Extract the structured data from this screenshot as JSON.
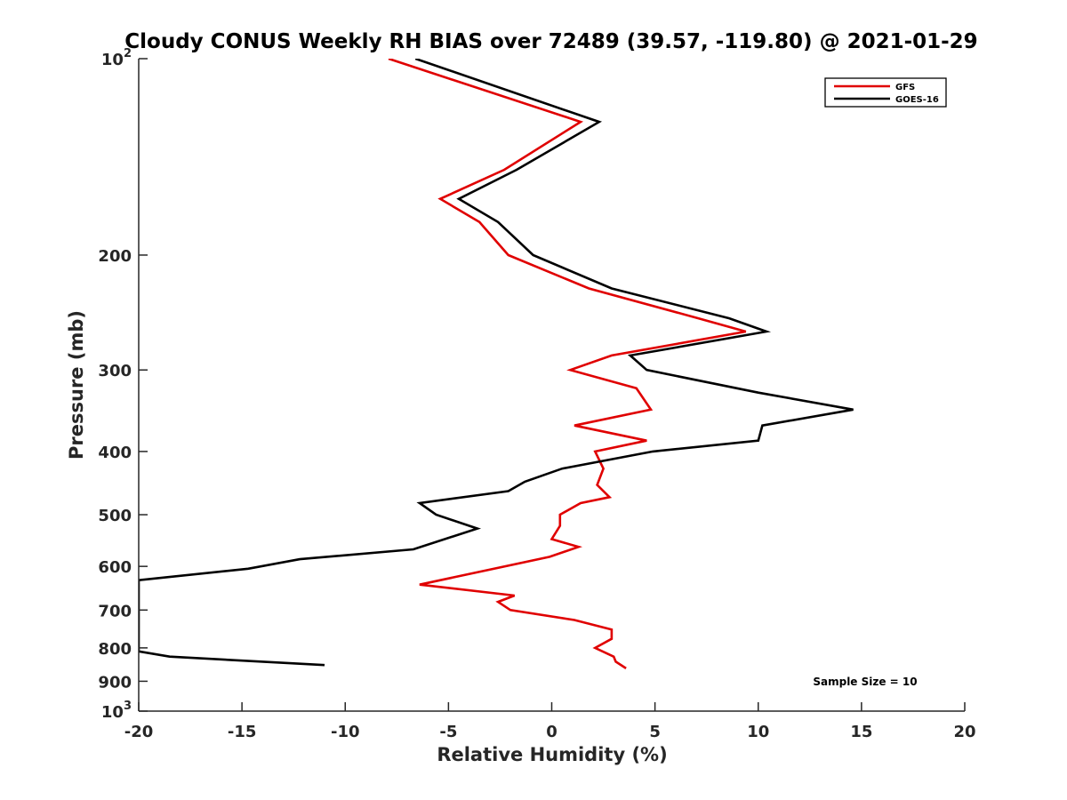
{
  "chart_data": {
    "type": "line",
    "title": "Cloudy CONUS Weekly RH BIAS over 72489 (39.57, -119.80) @ 2021-01-29",
    "xlabel": "Relative Humidity (%)",
    "ylabel": "Pressure (mb)",
    "xlim": [
      -20,
      20
    ],
    "ylim": [
      100,
      1000
    ],
    "yscale": "log",
    "y_reversed": true,
    "grid": false,
    "legend_position": "top-right",
    "x_ticks": [
      -20,
      -15,
      -10,
      -5,
      0,
      5,
      10,
      15,
      20
    ],
    "y_ticks": [
      {
        "value": 100,
        "base": "10",
        "exp": "2"
      },
      {
        "value": 200,
        "label": "200"
      },
      {
        "value": 300,
        "label": "300"
      },
      {
        "value": 400,
        "label": "400"
      },
      {
        "value": 500,
        "label": "500"
      },
      {
        "value": 600,
        "label": "600"
      },
      {
        "value": 700,
        "label": "700"
      },
      {
        "value": 800,
        "label": "800"
      },
      {
        "value": 900,
        "label": "900"
      },
      {
        "value": 1000,
        "base": "10",
        "exp": "3"
      }
    ],
    "annotation": "Sample Size = 10",
    "series": [
      {
        "name": "GFS",
        "color": "#e00000",
        "points": [
          [
            -7.9,
            100
          ],
          [
            1.4,
            125
          ],
          [
            -2.3,
            148
          ],
          [
            -5.4,
            164
          ],
          [
            -3.5,
            178
          ],
          [
            -2.1,
            200
          ],
          [
            1.8,
            225
          ],
          [
            7.1,
            250
          ],
          [
            9.4,
            262
          ],
          [
            2.9,
            285
          ],
          [
            0.9,
            300
          ],
          [
            4.1,
            320
          ],
          [
            4.8,
            345
          ],
          [
            1.1,
            365
          ],
          [
            4.6,
            385
          ],
          [
            2.1,
            400
          ],
          [
            2.5,
            425
          ],
          [
            2.2,
            450
          ],
          [
            2.8,
            470
          ],
          [
            1.4,
            480
          ],
          [
            0.4,
            500
          ],
          [
            0.4,
            520
          ],
          [
            0.0,
            545
          ],
          [
            1.3,
            560
          ],
          [
            -0.1,
            580
          ],
          [
            -6.4,
            640
          ],
          [
            -1.8,
            665
          ],
          [
            -2.6,
            680
          ],
          [
            -2.0,
            700
          ],
          [
            1.1,
            725
          ],
          [
            2.9,
            750
          ],
          [
            2.9,
            775
          ],
          [
            2.1,
            800
          ],
          [
            3.0,
            825
          ],
          [
            3.1,
            840
          ],
          [
            3.6,
            860
          ]
        ]
      },
      {
        "name": "GOES-16",
        "color": "#000000",
        "points": [
          [
            -6.6,
            100
          ],
          [
            2.3,
            125
          ],
          [
            -1.7,
            148
          ],
          [
            -4.5,
            164
          ],
          [
            -2.6,
            178
          ],
          [
            -0.9,
            200
          ],
          [
            2.9,
            225
          ],
          [
            8.6,
            250
          ],
          [
            10.4,
            262
          ],
          [
            3.8,
            285
          ],
          [
            4.6,
            300
          ],
          [
            10.0,
            325
          ],
          [
            14.6,
            345
          ],
          [
            10.2,
            365
          ],
          [
            10.0,
            385
          ],
          [
            4.9,
            400
          ],
          [
            0.5,
            425
          ],
          [
            -1.3,
            445
          ],
          [
            -2.1,
            460
          ],
          [
            -6.4,
            480
          ],
          [
            -5.6,
            500
          ],
          [
            -3.6,
            525
          ],
          [
            -6.7,
            565
          ],
          [
            -12.2,
            585
          ],
          [
            -14.7,
            605
          ],
          [
            -20.0,
            630
          ],
          [
            -20.0,
            810
          ],
          [
            -18.5,
            825
          ],
          [
            -11.0,
            850
          ]
        ]
      }
    ]
  }
}
